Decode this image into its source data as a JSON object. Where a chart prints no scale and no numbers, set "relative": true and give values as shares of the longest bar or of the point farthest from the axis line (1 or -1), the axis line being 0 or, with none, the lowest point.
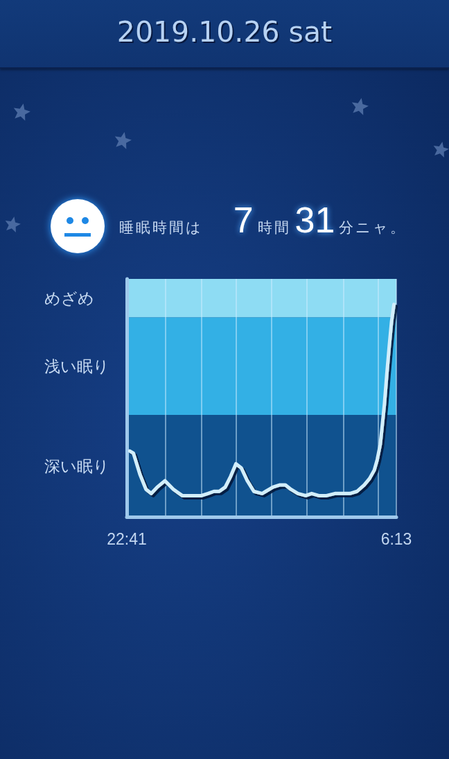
{
  "chart_data": {
    "type": "line",
    "title": "2019.10.26 sat",
    "subtitle": "睡眠時間は 7時間31分ニャ。",
    "relative": true,
    "x": [
      "2019-10-25T22:46",
      "2019-10-25T22:52",
      "2019-10-25T23:03",
      "2019-10-25T23:13",
      "2019-10-25T23:22",
      "2019-10-25T23:32",
      "2019-10-25T23:45",
      "2019-10-25T23:59",
      "2019-10-26T00:14",
      "2019-10-26T00:30",
      "2019-10-26T00:46",
      "2019-10-26T00:57",
      "2019-10-26T01:07",
      "2019-10-26T01:16",
      "2019-10-26T01:26",
      "2019-10-26T01:35",
      "2019-10-26T01:44",
      "2019-10-26T01:53",
      "2019-10-26T02:03",
      "2019-10-26T02:14",
      "2019-10-26T02:28",
      "2019-10-26T02:34",
      "2019-10-26T02:46",
      "2019-10-26T02:57",
      "2019-10-26T03:07",
      "2019-10-26T03:16",
      "2019-10-26T03:28",
      "2019-10-26T03:41",
      "2019-10-26T03:51",
      "2019-10-26T04:03",
      "2019-10-26T04:16",
      "2019-10-26T04:30",
      "2019-10-26T04:41",
      "2019-10-26T04:55",
      "2019-10-26T05:07",
      "2019-10-26T05:19",
      "2019-10-26T05:28",
      "2019-10-26T05:36",
      "2019-10-26T05:41",
      "2019-10-26T05:46",
      "2019-10-26T05:49",
      "2019-10-26T05:53",
      "2019-10-26T05:57",
      "2019-10-26T06:01",
      "2019-10-26T06:05",
      "2019-10-26T06:09"
    ],
    "values": [
      0.31,
      0.3,
      0.2,
      0.13,
      0.11,
      0.14,
      0.17,
      0.13,
      0.1,
      0.1,
      0.1,
      0.11,
      0.12,
      0.12,
      0.14,
      0.19,
      0.25,
      0.23,
      0.17,
      0.12,
      0.11,
      0.12,
      0.14,
      0.15,
      0.15,
      0.13,
      0.11,
      0.1,
      0.11,
      0.1,
      0.1,
      0.11,
      0.11,
      0.11,
      0.12,
      0.15,
      0.18,
      0.22,
      0.27,
      0.34,
      0.42,
      0.53,
      0.67,
      0.8,
      0.92,
      1
    ],
    "color": "#d2eefb",
    "xlim": [
      "2019-10-25T22:41",
      "2019-10-26T06:13"
    ],
    "xticks": [
      {
        "value": "2019-10-25T22:41",
        "label": "22:41"
      },
      {
        "value": "2019-10-25T23:46",
        "label": null
      },
      {
        "value": "2019-10-26T00:46",
        "label": null
      },
      {
        "value": "2019-10-26T01:44",
        "label": null
      },
      {
        "value": "2019-10-26T02:44",
        "label": null
      },
      {
        "value": "2019-10-26T03:43",
        "label": null
      },
      {
        "value": "2019-10-26T04:44",
        "label": null
      },
      {
        "value": "2019-10-26T05:43",
        "label": null
      },
      {
        "value": "2019-10-26T06:13",
        "label": "6:13"
      }
    ],
    "bands": [
      {
        "axis": "y",
        "from": 0,
        "to": 0.48,
        "label": "深い眠り",
        "color": "#10528f"
      },
      {
        "axis": "y",
        "from": 0.48,
        "to": 0.94,
        "label": "浅い眠り",
        "color": "#33b0e5"
      },
      {
        "axis": "y",
        "from": 0.94,
        "to": 1.12,
        "label": "めざめ",
        "color": "#8edcf3"
      }
    ],
    "grid": "x",
    "tick_labels": "x",
    "marker": "none",
    "line_style": "solid"
  }
}
